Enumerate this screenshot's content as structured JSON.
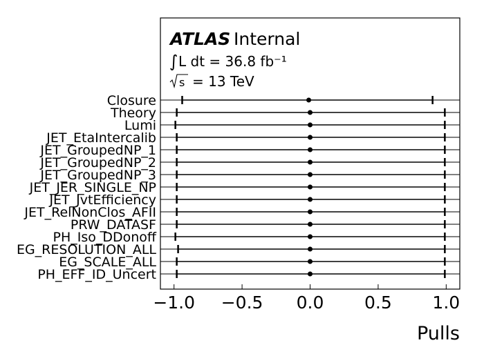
{
  "chart_data": {
    "type": "scatter",
    "subtype": "pull-plot-horizontal-errorbars",
    "title": "",
    "xlabel": "Pulls",
    "ylabel": "",
    "xlim": [
      -1.1,
      1.1
    ],
    "xticks": [
      -1.0,
      -0.5,
      0.0,
      0.5,
      1.0
    ],
    "xtick_labels": [
      "−1.0",
      "−0.5",
      "0.0",
      "0.5",
      "1.0"
    ],
    "grid": false,
    "legend": "none",
    "annotation": {
      "experiment": "ATLAS",
      "status": "Internal",
      "lumi": "L dt = 36.8 fb⁻¹",
      "energy": "= 13 TeV"
    },
    "categories": [
      "Closure",
      "Theory",
      "Lumi",
      "JET_EtaIntercalib",
      "JET_GroupedNP_1",
      "JET_GroupedNP_2",
      "JET_GroupedNP_3",
      "JET_JER_SINGLE_NP",
      "JET_JvtEfficiency",
      "JET_RelNonClos_AFII",
      "PRW_DATASF",
      "PH_Iso_DDonoff",
      "EG_RESOLUTION_ALL",
      "EG_SCALE_ALL",
      "PH_EFF_ID_Uncert"
    ],
    "values": [
      -0.01,
      0.0,
      0.0,
      0.0,
      0.0,
      0.0,
      0.0,
      0.0,
      0.0,
      0.0,
      0.0,
      0.0,
      0.0,
      0.0,
      0.0
    ],
    "err_low": [
      -0.94,
      -0.98,
      -0.99,
      -0.98,
      -0.98,
      -0.98,
      -0.98,
      -0.98,
      -0.98,
      -0.98,
      -0.98,
      -0.99,
      -0.97,
      -0.98,
      -0.98
    ],
    "err_high": [
      0.9,
      0.99,
      0.99,
      0.99,
      0.99,
      0.99,
      0.99,
      0.99,
      0.99,
      0.99,
      0.99,
      0.99,
      0.99,
      0.99,
      0.99
    ],
    "colors": {
      "marker": "#000000",
      "axis": "#000000"
    }
  }
}
